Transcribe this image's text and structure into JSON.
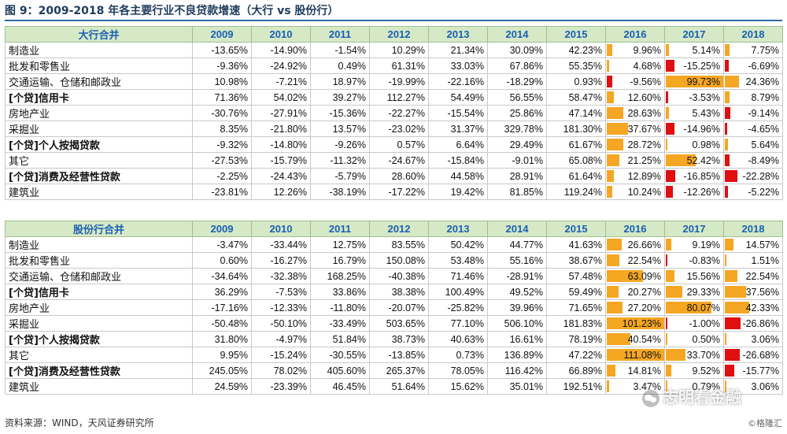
{
  "title": "图 9：2009-2018 年各主要行业不良贷款增速（大行 vs 股份行）",
  "source": "资料来源：WIND，天风证券研究所",
  "watermark": "志明看金融",
  "watermark2": "©格隆汇",
  "colors": {
    "positive_bar": "#f5a623",
    "negative_bar": "#e01010",
    "header_bg": "#d6e9c6",
    "header_text": "#1a5fb4"
  },
  "years": [
    "2009",
    "2010",
    "2011",
    "2012",
    "2013",
    "2014",
    "2015",
    "2016",
    "2017",
    "2018"
  ],
  "tables": [
    {
      "header": "大行合并",
      "rows": [
        {
          "name": "制造业",
          "bold": false,
          "values": [
            -13.65,
            -14.9,
            -1.54,
            10.29,
            21.34,
            30.09,
            42.23,
            9.96,
            5.14,
            7.75
          ]
        },
        {
          "name": "批发和零售业",
          "bold": false,
          "values": [
            -9.36,
            -24.92,
            0.49,
            61.31,
            33.03,
            67.86,
            55.35,
            4.68,
            -15.25,
            -6.69
          ]
        },
        {
          "name": "交通运输、仓储和邮政业",
          "bold": false,
          "values": [
            10.98,
            -7.21,
            18.97,
            -19.99,
            -22.16,
            -18.29,
            0.93,
            -9.56,
            99.73,
            24.36
          ]
        },
        {
          "name": "[个贷]信用卡",
          "bold": true,
          "values": [
            71.36,
            54.02,
            39.27,
            112.27,
            54.49,
            56.55,
            58.47,
            12.6,
            -3.53,
            8.79
          ]
        },
        {
          "name": "房地产业",
          "bold": false,
          "values": [
            -30.76,
            -27.91,
            -15.36,
            -22.27,
            -15.54,
            25.86,
            47.14,
            28.63,
            5.43,
            -9.14
          ]
        },
        {
          "name": "采掘业",
          "bold": false,
          "values": [
            8.35,
            -21.8,
            13.57,
            -23.02,
            31.37,
            329.78,
            181.3,
            37.67,
            -14.96,
            -4.65
          ]
        },
        {
          "name": "[个贷]个人按揭贷款",
          "bold": true,
          "values": [
            -9.32,
            -14.8,
            -9.26,
            0.57,
            6.64,
            29.49,
            61.67,
            28.72,
            0.98,
            5.64
          ]
        },
        {
          "name": "其它",
          "bold": false,
          "values": [
            -27.53,
            -15.79,
            -11.32,
            -24.67,
            -15.84,
            -9.01,
            65.08,
            21.25,
            52.42,
            -8.49
          ]
        },
        {
          "name": "[个贷]消费及经营性贷款",
          "bold": true,
          "values": [
            -2.25,
            -24.43,
            -5.79,
            28.6,
            44.58,
            28.91,
            61.64,
            12.89,
            -16.85,
            -22.28
          ]
        },
        {
          "name": "建筑业",
          "bold": false,
          "values": [
            -23.81,
            12.26,
            -38.19,
            -17.22,
            19.42,
            81.85,
            119.24,
            10.24,
            -12.26,
            -5.22
          ]
        }
      ]
    },
    {
      "header": "股份行合并",
      "rows": [
        {
          "name": "制造业",
          "bold": false,
          "values": [
            -3.47,
            -33.44,
            12.75,
            83.55,
            50.42,
            44.77,
            41.63,
            26.66,
            9.19,
            14.57
          ]
        },
        {
          "name": "批发和零售业",
          "bold": false,
          "values": [
            0.6,
            -16.27,
            16.79,
            150.08,
            53.48,
            55.16,
            38.67,
            22.54,
            -0.83,
            1.51
          ]
        },
        {
          "name": "交通运输、仓储和邮政业",
          "bold": false,
          "values": [
            -34.64,
            -32.38,
            168.25,
            -40.38,
            71.46,
            -28.91,
            57.48,
            63.09,
            15.56,
            22.54
          ]
        },
        {
          "name": "[个贷]信用卡",
          "bold": true,
          "values": [
            36.29,
            -7.53,
            33.86,
            38.38,
            100.49,
            49.52,
            59.49,
            20.27,
            29.33,
            37.56
          ]
        },
        {
          "name": "房地产业",
          "bold": false,
          "values": [
            -17.16,
            -12.33,
            -11.8,
            -20.07,
            -25.82,
            39.96,
            71.65,
            27.2,
            80.07,
            42.33
          ]
        },
        {
          "name": "采掘业",
          "bold": false,
          "values": [
            -50.48,
            -50.1,
            -33.49,
            503.65,
            77.1,
            506.1,
            181.83,
            101.23,
            -1.0,
            -26.86
          ]
        },
        {
          "name": "[个贷]个人按揭贷款",
          "bold": true,
          "values": [
            31.8,
            -4.97,
            51.84,
            38.73,
            40.63,
            16.61,
            78.19,
            40.54,
            0.5,
            3.06
          ]
        },
        {
          "name": "其它",
          "bold": false,
          "values": [
            9.95,
            -15.24,
            -30.55,
            -13.85,
            0.73,
            136.89,
            47.22,
            111.08,
            33.7,
            -26.68
          ]
        },
        {
          "name": "[个贷]消费及经营性贷款",
          "bold": true,
          "values": [
            245.05,
            78.02,
            405.6,
            265.37,
            78.05,
            116.42,
            66.89,
            14.81,
            9.52,
            -15.77
          ]
        },
        {
          "name": "建筑业",
          "bold": false,
          "values": [
            24.59,
            -23.39,
            46.45,
            51.64,
            15.62,
            35.01,
            192.51,
            3.47,
            0.79,
            3.06
          ]
        }
      ]
    }
  ]
}
